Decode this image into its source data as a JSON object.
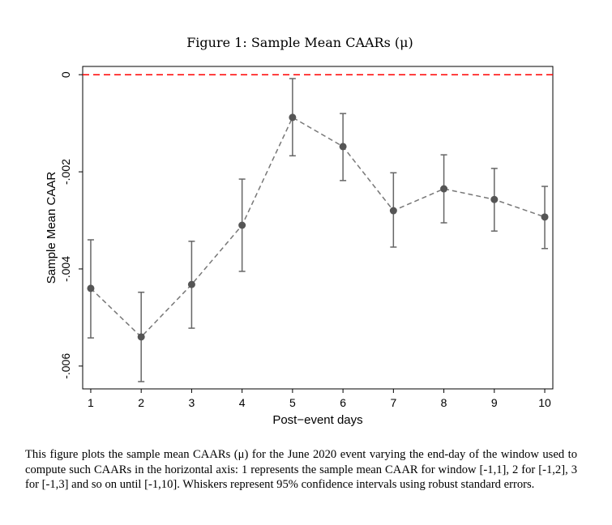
{
  "chart_data": {
    "type": "line",
    "title": "Figure 1: Sample Mean CAARs (μ)",
    "xlabel": "Post−event days",
    "ylabel": "Sample Mean CAAR",
    "x": [
      1,
      2,
      3,
      4,
      5,
      6,
      7,
      8,
      9,
      10
    ],
    "xticks": [
      "1",
      "2",
      "3",
      "4",
      "5",
      "6",
      "7",
      "8",
      "9",
      "10"
    ],
    "yticks": [
      {
        "value": 0,
        "label": "0"
      },
      {
        "value": -0.002,
        "label": "-.002"
      },
      {
        "value": -0.004,
        "label": "-.004"
      },
      {
        "value": -0.006,
        "label": "-.006"
      }
    ],
    "xlim": [
      0.84,
      10.16
    ],
    "ylim": [
      -0.00647,
      0.00017
    ],
    "grid": false,
    "series": [
      {
        "values": [
          -0.0044,
          -0.0054,
          -0.00432,
          -0.0031,
          -0.00088,
          -0.00148,
          -0.0028,
          -0.00235,
          -0.00257,
          -0.00293
        ],
        "ci_upper": [
          -0.0034,
          -0.00448,
          -0.00343,
          -0.00215,
          -8e-05,
          -0.0008,
          -0.00202,
          -0.00165,
          -0.00193,
          -0.0023
        ],
        "ci_lower": [
          -0.00542,
          -0.00632,
          -0.00522,
          -0.00405,
          -0.00167,
          -0.00218,
          -0.00355,
          -0.00305,
          -0.00322,
          -0.00358
        ],
        "color": "#555555"
      }
    ],
    "reference_line": {
      "y": 0,
      "color": "#ff0000",
      "style": "dashed"
    }
  },
  "caption": "This figure plots the sample mean CAARs (μ) for the June 2020 event varying the end-day of the window used to compute such CAARs in the horizontal axis: 1 represents the sample mean CAAR for window [-1,1], 2 for [-1,2], 3 for [-1,3] and so on until [-1,10]. Whiskers represent 95% confidence intervals using robust standard errors."
}
